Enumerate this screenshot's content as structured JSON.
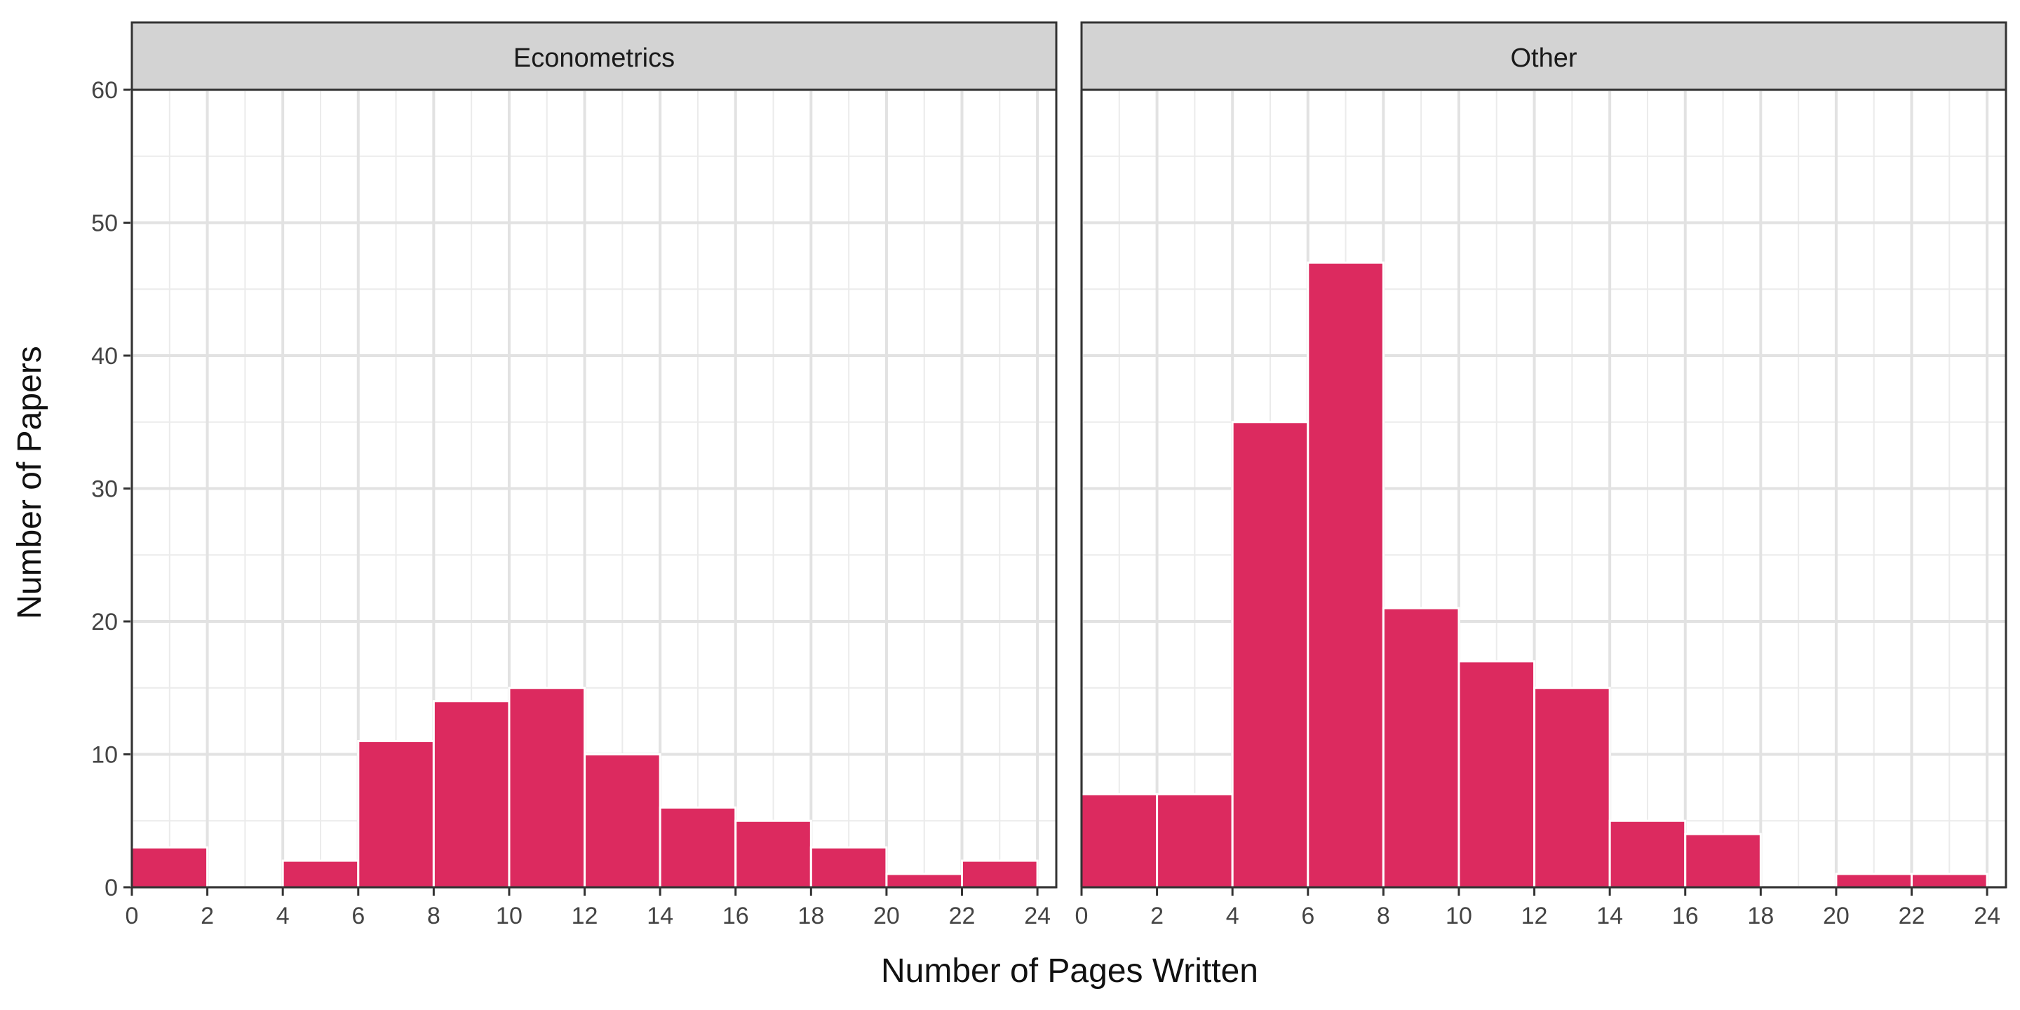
{
  "chart_data": {
    "type": "bar",
    "chart_kind": "faceted histogram",
    "xlabel": "Number of Pages Written",
    "ylabel": "Number of Papers",
    "xlim": [
      0,
      24.5
    ],
    "ylim": [
      0,
      60
    ],
    "x_ticks": [
      0,
      2,
      4,
      6,
      8,
      10,
      12,
      14,
      16,
      18,
      20,
      22,
      24
    ],
    "y_ticks": [
      0,
      10,
      20,
      30,
      40,
      50,
      60
    ],
    "bin_width": 2,
    "bin_starts": [
      0,
      2,
      4,
      6,
      8,
      10,
      12,
      14,
      16,
      18,
      20,
      22
    ],
    "grid": true,
    "bar_color": "#DC2A5F",
    "strip_color": "#D3D3D3",
    "panels": [
      {
        "name": "Econometrics",
        "values": [
          3,
          0,
          2,
          11,
          14,
          15,
          10,
          6,
          5,
          3,
          1,
          2
        ]
      },
      {
        "name": "Other",
        "values": [
          7,
          7,
          35,
          47,
          21,
          17,
          15,
          5,
          4,
          0,
          1,
          1
        ]
      }
    ]
  }
}
